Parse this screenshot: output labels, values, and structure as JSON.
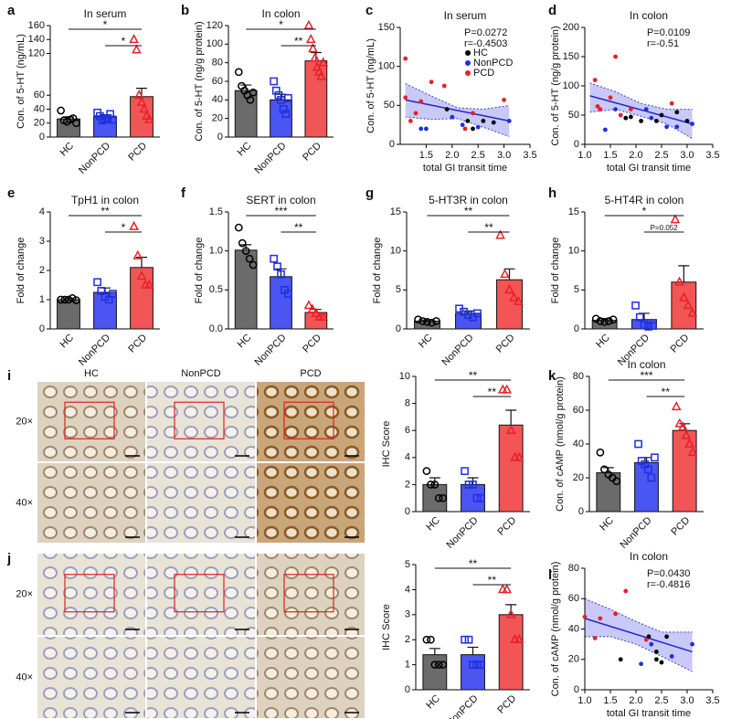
{
  "chart_data": [
    {
      "type": "bar",
      "panel": "a",
      "title": "In serum",
      "ylabel": "Con. of 5-HT (ng/mL)",
      "categories": [
        "HC",
        "NonPCD",
        "PCD"
      ],
      "values": [
        26,
        29,
        58
      ],
      "errors": [
        3,
        3,
        12
      ],
      "points": [
        [
          38,
          24,
          22,
          25,
          27,
          20
        ],
        [
          35,
          30,
          24,
          26,
          27,
          33,
          25
        ],
        [
          140,
          125,
          60,
          50,
          40,
          30,
          25
        ]
      ],
      "colors": [
        "#6b6b6b",
        "#4b55f0",
        "#f25555"
      ],
      "marker_colors": [
        "#000000",
        "#1f2fe0",
        "#e8202a"
      ],
      "markers": [
        "circle",
        "square",
        "triangle"
      ],
      "ylim": [
        0,
        160
      ],
      "yticks": [
        0,
        20,
        40,
        60,
        120,
        140,
        160
      ],
      "significance": [
        "*",
        "*"
      ]
    },
    {
      "type": "bar",
      "panel": "b",
      "title": "In colon",
      "ylabel": "Con. of 5-HT (ng/g protein)",
      "categories": [
        "HC",
        "NonPCD",
        "PCD"
      ],
      "values": [
        50,
        40,
        82
      ],
      "errors": [
        6,
        6,
        9
      ],
      "points": [
        [
          70,
          55,
          50,
          45,
          40,
          48
        ],
        [
          60,
          50,
          45,
          40,
          30,
          25,
          42
        ],
        [
          120,
          105,
          95,
          85,
          75,
          70,
          65,
          80
        ]
      ],
      "colors": [
        "#6b6b6b",
        "#4b55f0",
        "#f25555"
      ],
      "marker_colors": [
        "#000000",
        "#1f2fe0",
        "#e8202a"
      ],
      "markers": [
        "circle",
        "square",
        "triangle"
      ],
      "ylim": [
        0,
        120
      ],
      "yticks": [
        0,
        20,
        40,
        60,
        80,
        100,
        120
      ],
      "significance": [
        "*",
        "**"
      ]
    },
    {
      "type": "scatter",
      "panel": "c",
      "title": "In serum",
      "xlabel": "total GI transit time",
      "ylabel": "Con. of 5-HT (ng/mL)",
      "annotations": [
        "P=0.0272",
        "r=-0.4503"
      ],
      "legend": true,
      "series": [
        {
          "name": "HC",
          "color": "#000000",
          "x": [
            1.9,
            2.3,
            2.6,
            2.8,
            2.4
          ],
          "values": [
            45,
            30,
            30,
            28,
            20
          ]
        },
        {
          "name": "NonPCD",
          "color": "#1f2fe0",
          "x": [
            1.4,
            1.5,
            2.0,
            2.2,
            2.5,
            3.1
          ],
          "values": [
            20,
            20,
            35,
            25,
            22,
            30
          ]
        },
        {
          "name": "PCD",
          "color": "#e8202a",
          "x": [
            1.1,
            1.1,
            1.2,
            1.3,
            1.4,
            1.6,
            1.85,
            2.25,
            2.4,
            3.0
          ],
          "values": [
            110,
            60,
            30,
            40,
            55,
            80,
            75,
            20,
            40,
            57
          ]
        }
      ],
      "fit": {
        "x": [
          1.1,
          3.1
        ],
        "y": [
          57,
          30
        ]
      },
      "band": {
        "x": [
          1.1,
          1.6,
          2.1,
          2.6,
          3.1
        ],
        "low": [
          35,
          32,
          33,
          22,
          10
        ],
        "high": [
          78,
          62,
          47,
          45,
          50
        ]
      },
      "xlim": [
        1.0,
        3.5
      ],
      "xticks": [
        1.5,
        {
          "value": 2,
          "label": "2.0"
        },
        2.5,
        {
          "value": 3,
          "label": "3.0"
        },
        3.5
      ],
      "ylim": [
        0,
        150
      ],
      "yticks": [
        0,
        50,
        100,
        150
      ]
    },
    {
      "type": "scatter",
      "panel": "d",
      "title": "In colon",
      "xlabel": "total GI transit time",
      "ylabel": "Con. of 5-HT (ng/g protein)",
      "annotations": [
        "P=0.0109",
        "r=-0.51"
      ],
      "legend": false,
      "series": [
        {
          "color": "#000000",
          "x": [
            1.8,
            1.9,
            2.1,
            2.4,
            2.5,
            2.8,
            3.0
          ],
          "values": [
            45,
            47,
            40,
            40,
            50,
            55,
            40
          ]
        },
        {
          "color": "#1f2fe0",
          "x": [
            1.4,
            1.6,
            2.2,
            2.3,
            2.6,
            2.8,
            3.1
          ],
          "values": [
            25,
            60,
            60,
            45,
            30,
            30,
            35
          ]
        },
        {
          "color": "#e8202a",
          "x": [
            1.2,
            1.25,
            1.3,
            1.5,
            1.6,
            1.7,
            1.9,
            2.7
          ],
          "values": [
            110,
            65,
            60,
            80,
            150,
            50,
            60,
            70
          ]
        }
      ],
      "fit": {
        "x": [
          1.1,
          3.1
        ],
        "y": [
          83,
          35
        ]
      },
      "band": {
        "x": [
          1.1,
          1.6,
          2.1,
          2.6,
          3.1
        ],
        "low": [
          55,
          60,
          48,
          35,
          10
        ],
        "high": [
          105,
          90,
          70,
          60,
          60
        ]
      },
      "xlim": [
        1.0,
        3.5
      ],
      "xticks": [
        {
          "value": 1,
          "label": "1.0"
        },
        1.5,
        {
          "value": 2,
          "label": "2.0"
        },
        2.5,
        {
          "value": 3,
          "label": "3.0"
        },
        3.5
      ],
      "ylim": [
        0,
        200
      ],
      "yticks": [
        0,
        50,
        100,
        150,
        200
      ]
    },
    {
      "type": "bar",
      "panel": "e",
      "title": "TpH1 in colon",
      "ylabel": "Fold of change",
      "categories": [
        "HC",
        "NonPCD",
        "PCD"
      ],
      "values": [
        1.0,
        1.25,
        2.1
      ],
      "errors": [
        0.05,
        0.15,
        0.35
      ],
      "points": [
        [
          1,
          1,
          1,
          1.05,
          0.98
        ],
        [
          1.6,
          1.3,
          1.1,
          1.0,
          1.2
        ],
        [
          3.5,
          2.5,
          1.8,
          1.5,
          1.5
        ]
      ],
      "colors": [
        "#6b6b6b",
        "#4b55f0",
        "#f25555"
      ],
      "marker_colors": [
        "#000000",
        "#1f2fe0",
        "#e8202a"
      ],
      "markers": [
        "circle",
        "square",
        "triangle"
      ],
      "ylim": [
        0,
        4
      ],
      "yticks": [
        0,
        1,
        2,
        3,
        4
      ],
      "significance": [
        "**",
        "*"
      ]
    },
    {
      "type": "bar",
      "panel": "f",
      "title": "SERT in colon",
      "ylabel": "Fold of change",
      "categories": [
        "HC",
        "NonPCD",
        "PCD"
      ],
      "values": [
        1.01,
        0.67,
        0.21
      ],
      "errors": [
        0.07,
        0.1,
        0.04
      ],
      "points": [
        [
          1.3,
          1.1,
          1.0,
          0.9,
          0.82
        ],
        [
          0.9,
          0.8,
          0.7,
          0.5,
          0.45
        ],
        [
          0.3,
          0.25,
          0.2,
          0.15,
          0.15
        ]
      ],
      "colors": [
        "#6b6b6b",
        "#4b55f0",
        "#f25555"
      ],
      "marker_colors": [
        "#000000",
        "#1f2fe0",
        "#e8202a"
      ],
      "markers": [
        "circle",
        "square",
        "triangle"
      ],
      "ylim": [
        0,
        1.5
      ],
      "yticks": [
        {
          "value": 0,
          "label": "0.0"
        },
        0.5,
        {
          "value": 1,
          "label": "1.0"
        },
        1.5
      ],
      "significance": [
        "***",
        "**"
      ]
    },
    {
      "type": "bar",
      "panel": "g",
      "title": "5-HT3R in colon",
      "ylabel": "Fold of change",
      "categories": [
        "HC",
        "NonPCD",
        "PCD"
      ],
      "values": [
        1.0,
        2.0,
        6.3
      ],
      "errors": [
        0.15,
        0.3,
        1.4
      ],
      "points": [
        [
          1.2,
          1.0,
          0.9,
          0.8,
          1.0
        ],
        [
          2.6,
          2.2,
          1.8,
          1.5,
          2.0
        ],
        [
          12,
          7,
          5,
          4,
          3.5
        ]
      ],
      "colors": [
        "#6b6b6b",
        "#4b55f0",
        "#f25555"
      ],
      "marker_colors": [
        "#000000",
        "#1f2fe0",
        "#e8202a"
      ],
      "markers": [
        "circle",
        "square",
        "triangle"
      ],
      "ylim": [
        0,
        15
      ],
      "yticks": [
        0,
        5,
        10,
        15
      ],
      "significance": [
        "**",
        "**"
      ]
    },
    {
      "type": "bar",
      "panel": "h",
      "title": "5-HT4R in colon",
      "ylabel": "Fold of change",
      "categories": [
        "HC",
        "NonPCD",
        "PCD"
      ],
      "values": [
        1.1,
        1.2,
        6.0
      ],
      "errors": [
        0.2,
        0.8,
        2.1
      ],
      "points": [
        [
          1.3,
          1.0,
          0.9,
          1.0,
          1.2
        ],
        [
          3.0,
          1.5,
          0.5,
          0.3,
          0.4
        ],
        [
          14,
          6,
          4,
          3,
          2
        ]
      ],
      "colors": [
        "#6b6b6b",
        "#4b55f0",
        "#f25555"
      ],
      "marker_colors": [
        "#000000",
        "#1f2fe0",
        "#e8202a"
      ],
      "markers": [
        "circle",
        "square",
        "triangle"
      ],
      "ylim": [
        0,
        15
      ],
      "yticks": [
        0,
        5,
        10,
        15
      ],
      "significance": [
        "*",
        "P=0.052"
      ]
    },
    {
      "type": "bar",
      "ylabel": "IHC Score",
      "categories": [
        "HC",
        "NonPCD",
        "PCD"
      ],
      "values": [
        2.0,
        2.0,
        6.4
      ],
      "errors": [
        0.5,
        0.5,
        1.1
      ],
      "points": [
        [
          3,
          2,
          2,
          1,
          1
        ],
        [
          3,
          2,
          2,
          1,
          1
        ],
        [
          9,
          9,
          6,
          4,
          4
        ]
      ],
      "colors": [
        "#6b6b6b",
        "#4b55f0",
        "#f25555"
      ],
      "marker_colors": [
        "#000000",
        "#1f2fe0",
        "#e8202a"
      ],
      "markers": [
        "circle",
        "square",
        "triangle"
      ],
      "ylim": [
        0,
        10
      ],
      "yticks": [
        0,
        2,
        4,
        6,
        8,
        10
      ],
      "significance": [
        "**",
        "**"
      ]
    },
    {
      "type": "bar",
      "panel": "k",
      "title": "In colon",
      "ylabel": "Con. of cAMP (nmol/g protein)",
      "categories": [
        "HC",
        "NonPCD",
        "PCD"
      ],
      "values": [
        23,
        29,
        48
      ],
      "errors": [
        3,
        3,
        4
      ],
      "points": [
        [
          35,
          25,
          22,
          20,
          18
        ],
        [
          40,
          30,
          28,
          25,
          20,
          32
        ],
        [
          62,
          52,
          50,
          45,
          40,
          35
        ]
      ],
      "colors": [
        "#6b6b6b",
        "#4b55f0",
        "#f25555"
      ],
      "marker_colors": [
        "#000000",
        "#1f2fe0",
        "#e8202a"
      ],
      "markers": [
        "circle",
        "square",
        "triangle"
      ],
      "ylim": [
        0,
        80
      ],
      "yticks": [
        0,
        20,
        40,
        60,
        80
      ],
      "significance": [
        "***",
        "**"
      ]
    },
    {
      "type": "bar",
      "ylabel": "IHC Score",
      "categories": [
        "HC",
        "NonPCD",
        "PCD"
      ],
      "values": [
        1.4,
        1.4,
        3.0
      ],
      "errors": [
        0.25,
        0.3,
        0.4
      ],
      "points": [
        [
          2,
          2,
          1,
          1,
          1
        ],
        [
          2,
          2,
          1,
          1,
          1
        ],
        [
          4,
          4,
          3,
          2,
          2
        ]
      ],
      "colors": [
        "#6b6b6b",
        "#4b55f0",
        "#f25555"
      ],
      "marker_colors": [
        "#000000",
        "#1f2fe0",
        "#e8202a"
      ],
      "markers": [
        "circle",
        "square",
        "triangle"
      ],
      "ylim": [
        0,
        5
      ],
      "yticks": [
        0,
        1,
        2,
        3,
        4,
        5
      ],
      "significance": [
        "**",
        "**"
      ]
    },
    {
      "type": "scatter",
      "panel": "l",
      "title": "In colon",
      "xlabel": "total GI transit time",
      "ylabel": "Con. of cAMP (nmol/g protein)",
      "annotations": [
        "P=0.0430",
        "r=-0.4816"
      ],
      "legend": false,
      "series": [
        {
          "color": "#000000",
          "x": [
            1.7,
            2.25,
            2.4,
            2.4,
            2.5,
            2.6
          ],
          "values": [
            20,
            35,
            20,
            25,
            18,
            35
          ]
        },
        {
          "color": "#1f2fe0",
          "x": [
            2.1,
            2.3,
            2.7,
            3.1
          ],
          "values": [
            17,
            30,
            22,
            30
          ]
        },
        {
          "color": "#e8202a",
          "x": [
            1.0,
            1.2,
            1.3,
            1.6,
            1.8,
            2.2
          ],
          "values": [
            48,
            34,
            47,
            50,
            65,
            33
          ]
        }
      ],
      "fit": {
        "x": [
          1.0,
          3.1
        ],
        "y": [
          47,
          25
        ]
      },
      "band": {
        "x": [
          1.0,
          1.5,
          2.0,
          2.5,
          3.1
        ],
        "low": [
          35,
          35,
          30,
          22,
          12
        ],
        "high": [
          60,
          53,
          45,
          38,
          38
        ]
      },
      "xlim": [
        1.0,
        3.5
      ],
      "xticks": [
        {
          "value": 1,
          "label": "1.0"
        },
        1.5,
        {
          "value": 2,
          "label": "2.0"
        },
        2.5,
        {
          "value": 3,
          "label": "3.0"
        },
        3.5
      ],
      "ylim": [
        0,
        80
      ],
      "yticks": [
        0,
        20,
        40,
        60,
        80
      ]
    }
  ],
  "figures": [
    {
      "panel": "i",
      "columns": [
        "HC",
        "NonPCD",
        "PCD"
      ],
      "rows": [
        "20×",
        "40×"
      ]
    },
    {
      "panel": "j",
      "rows": [
        "20×",
        "40×"
      ]
    }
  ]
}
